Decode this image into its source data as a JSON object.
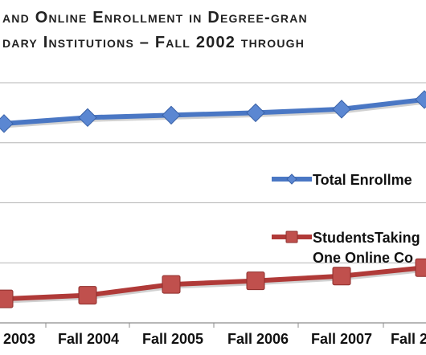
{
  "chart_data": {
    "type": "line",
    "title_line1": "and Online Enrollment in Degree-gran",
    "title_line2": "dary Institutions – Fall 2002 through",
    "categories": [
      "2003",
      "Fall 2004",
      "Fall 2005",
      "Fall 2006",
      "Fall 2007",
      "Fall 2"
    ],
    "series": [
      {
        "name": "Total Enrollme",
        "name_line2": "",
        "color": "#4a77c4",
        "marker": "diamond",
        "values": [
          16.6,
          17.1,
          17.3,
          17.5,
          17.8,
          18.6
        ]
      },
      {
        "name": "StudentsTaking",
        "name_line2": "One Online Co",
        "color": "#b03a38",
        "marker": "square",
        "values": [
          2.0,
          2.3,
          3.2,
          3.5,
          3.9,
          4.6
        ]
      }
    ],
    "ylim": [
      0,
      20
    ],
    "y_gridlines": [
      5,
      10,
      15,
      20
    ],
    "grid": true,
    "legend": "right, stacked"
  }
}
